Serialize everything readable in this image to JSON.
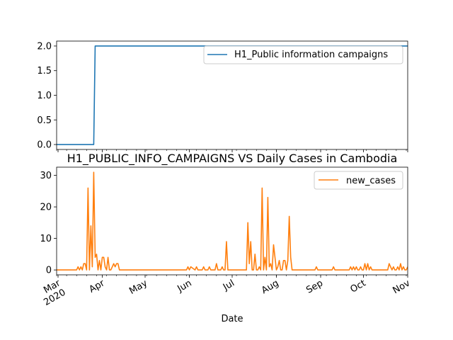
{
  "chart_data": [
    {
      "type": "line",
      "title": "",
      "xlabel": "",
      "ylabel": "",
      "ylim": [
        -0.1,
        2.1
      ],
      "yticks": [
        0.0,
        0.5,
        1.0,
        1.5,
        2.0
      ],
      "ytick_labels": [
        "0.0",
        "0.5",
        "1.0",
        "1.5",
        "2.0"
      ],
      "legend_position": "upper right",
      "series": [
        {
          "name": "H1_Public information campaigns",
          "color": "#1f77b4",
          "x": [
            "2020-02-29",
            "2020-03-26",
            "2020-03-27",
            "2020-11-01"
          ],
          "values": [
            0,
            0,
            2,
            2
          ]
        }
      ]
    },
    {
      "type": "line",
      "title": "H1_PUBLIC_INFO_CAMPAIGNS VS Daily Cases in Cambodia",
      "xlabel": "Date",
      "ylabel": "",
      "ylim": [
        -1.55,
        32.6
      ],
      "yticks": [
        0,
        10,
        20,
        30
      ],
      "ytick_labels": [
        "0",
        "10",
        "20",
        "30"
      ],
      "xlim": [
        "2020-02-29",
        "2020-11-01"
      ],
      "xtick_dates": [
        "2020-03-01",
        "2020-04-01",
        "2020-05-01",
        "2020-06-01",
        "2020-07-01",
        "2020-08-01",
        "2020-09-01",
        "2020-10-01",
        "2020-11-01"
      ],
      "xtick_labels": [
        "Mar\n2020",
        "Apr",
        "May",
        "Jun",
        "Jul",
        "Aug",
        "Sep",
        "Oct",
        "Nov"
      ],
      "legend_position": "upper right",
      "series": [
        {
          "name": "new_cases",
          "color": "#ff7f0e",
          "x": [
            "2020-02-29",
            "2020-03-14",
            "2020-03-15",
            "2020-03-16",
            "2020-03-17",
            "2020-03-18",
            "2020-03-19",
            "2020-03-20",
            "2020-03-21",
            "2020-03-22",
            "2020-03-23",
            "2020-03-24",
            "2020-03-25",
            "2020-03-26",
            "2020-03-27",
            "2020-03-28",
            "2020-03-29",
            "2020-03-30",
            "2020-03-31",
            "2020-04-01",
            "2020-04-02",
            "2020-04-03",
            "2020-04-04",
            "2020-04-05",
            "2020-04-06",
            "2020-04-07",
            "2020-04-08",
            "2020-04-09",
            "2020-04-10",
            "2020-04-11",
            "2020-04-12",
            "2020-04-13",
            "2020-05-30",
            "2020-05-31",
            "2020-06-01",
            "2020-06-02",
            "2020-06-05",
            "2020-06-06",
            "2020-06-07",
            "2020-06-10",
            "2020-06-11",
            "2020-06-12",
            "2020-06-14",
            "2020-06-15",
            "2020-06-16",
            "2020-06-19",
            "2020-06-20",
            "2020-06-21",
            "2020-06-23",
            "2020-06-24",
            "2020-06-25",
            "2020-06-26",
            "2020-06-27",
            "2020-06-28",
            "2020-07-11",
            "2020-07-12",
            "2020-07-13",
            "2020-07-14",
            "2020-07-15",
            "2020-07-16",
            "2020-07-17",
            "2020-07-18",
            "2020-07-19",
            "2020-07-20",
            "2020-07-21",
            "2020-07-22",
            "2020-07-23",
            "2020-07-24",
            "2020-07-25",
            "2020-07-26",
            "2020-07-27",
            "2020-07-28",
            "2020-07-29",
            "2020-07-30",
            "2020-07-31",
            "2020-08-01",
            "2020-08-02",
            "2020-08-03",
            "2020-08-04",
            "2020-08-05",
            "2020-08-06",
            "2020-08-07",
            "2020-08-08",
            "2020-08-09",
            "2020-08-10",
            "2020-08-11",
            "2020-08-12",
            "2020-08-28",
            "2020-08-29",
            "2020-08-30",
            "2020-09-09",
            "2020-09-10",
            "2020-09-11",
            "2020-09-21",
            "2020-09-22",
            "2020-09-23",
            "2020-09-24",
            "2020-09-25",
            "2020-09-26",
            "2020-09-27",
            "2020-09-28",
            "2020-09-29",
            "2020-09-30",
            "2020-10-01",
            "2020-10-02",
            "2020-10-03",
            "2020-10-04",
            "2020-10-05",
            "2020-10-06",
            "2020-10-07",
            "2020-10-08",
            "2020-10-18",
            "2020-10-19",
            "2020-10-20",
            "2020-10-21",
            "2020-10-22",
            "2020-10-23",
            "2020-10-24",
            "2020-10-25",
            "2020-10-26",
            "2020-10-27",
            "2020-10-28",
            "2020-10-29",
            "2020-10-30",
            "2020-10-31",
            "2020-11-01"
          ],
          "values": [
            0,
            0,
            1,
            0,
            1,
            0,
            2,
            2,
            0,
            26,
            0,
            14,
            1,
            31,
            4,
            5,
            0,
            3,
            0,
            4,
            4,
            1,
            0,
            4,
            0,
            0,
            1,
            2,
            1,
            2,
            2,
            0,
            0,
            1,
            0,
            1,
            0,
            1,
            0,
            0,
            1,
            0,
            0,
            1,
            0,
            0,
            2,
            0,
            0,
            1,
            0,
            0,
            9,
            0,
            0,
            15,
            2,
            9,
            0,
            0,
            5,
            0,
            0,
            1,
            0,
            26,
            0,
            4,
            0,
            23,
            1,
            2,
            0,
            8,
            4,
            0,
            1,
            3,
            0,
            0,
            3,
            3,
            0,
            3,
            17,
            4,
            0,
            0,
            1,
            0,
            0,
            1,
            0,
            0,
            1,
            0,
            1,
            0,
            1,
            0,
            0,
            1,
            0,
            0,
            2,
            0,
            2,
            0,
            1,
            0,
            0,
            0,
            2,
            1,
            0,
            1,
            0,
            0,
            1,
            0,
            2,
            0,
            1,
            0,
            0,
            1
          ]
        }
      ]
    }
  ]
}
